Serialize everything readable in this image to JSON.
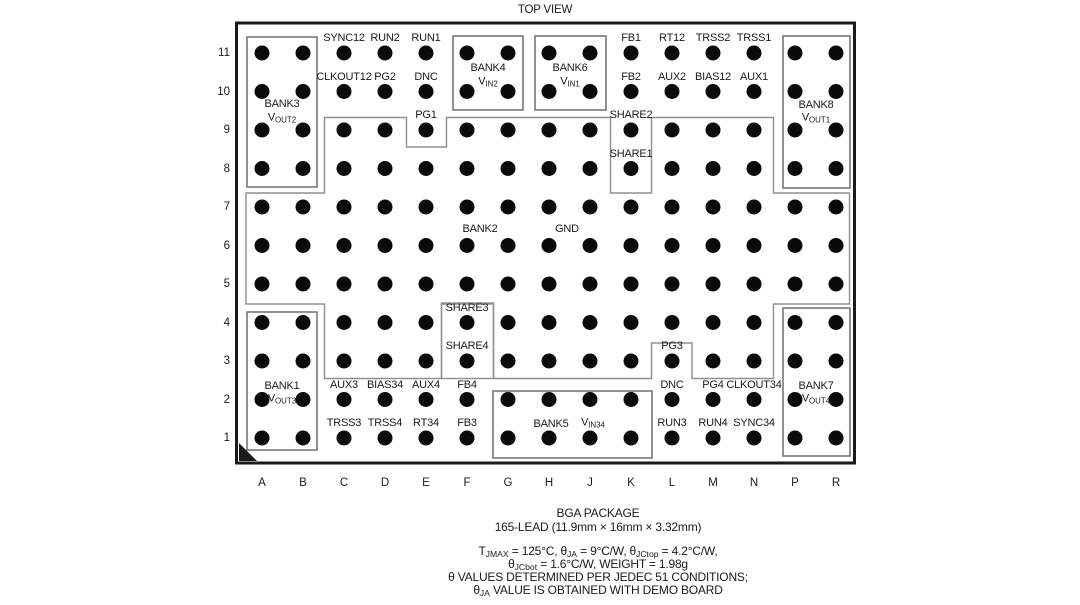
{
  "title": "TOP VIEW",
  "colors": {
    "ink": "#1a1a1a",
    "region_outline": "#8f8f8f",
    "box_outline": "#6e6e6e"
  },
  "grid": {
    "columns": [
      "A",
      "B",
      "C",
      "D",
      "E",
      "F",
      "G",
      "H",
      "J",
      "K",
      "L",
      "M",
      "N",
      "P",
      "R"
    ],
    "rows": [
      "11",
      "10",
      "9",
      "8",
      "7",
      "6",
      "5",
      "4",
      "3",
      "2",
      "1"
    ]
  },
  "pin_labels": [
    {
      "label": "SYNC12",
      "col": "C",
      "row": "11"
    },
    {
      "label": "RUN2",
      "col": "D",
      "row": "11"
    },
    {
      "label": "RUN1",
      "col": "E",
      "row": "11"
    },
    {
      "label": "FB1",
      "col": "K",
      "row": "11"
    },
    {
      "label": "RT12",
      "col": "L",
      "row": "11"
    },
    {
      "label": "TRSS2",
      "col": "M",
      "row": "11"
    },
    {
      "label": "TRSS1",
      "col": "N",
      "row": "11"
    },
    {
      "label": "CLKOUT12",
      "col": "C",
      "row": "10"
    },
    {
      "label": "PG2",
      "col": "D",
      "row": "10"
    },
    {
      "label": "DNC",
      "col": "E",
      "row": "10"
    },
    {
      "label": "FB2",
      "col": "K",
      "row": "10"
    },
    {
      "label": "AUX2",
      "col": "L",
      "row": "10"
    },
    {
      "label": "BIAS12",
      "col": "M",
      "row": "10"
    },
    {
      "label": "AUX1",
      "col": "N",
      "row": "10"
    },
    {
      "label": "PG1",
      "col": "E",
      "row": "9"
    },
    {
      "label": "SHARE2",
      "col": "K",
      "row": "9"
    },
    {
      "label": "SHARE1",
      "col": "K",
      "row": "8"
    },
    {
      "label": "SHARE3",
      "col": "F",
      "row": "4"
    },
    {
      "label": "SHARE4",
      "col": "F",
      "row": "3"
    },
    {
      "label": "PG3",
      "col": "L",
      "row": "3"
    },
    {
      "label": "AUX3",
      "col": "C",
      "row": "2"
    },
    {
      "label": "BIAS34",
      "col": "D",
      "row": "2"
    },
    {
      "label": "AUX4",
      "col": "E",
      "row": "2"
    },
    {
      "label": "FB4",
      "col": "F",
      "row": "2"
    },
    {
      "label": "DNC",
      "col": "L",
      "row": "2"
    },
    {
      "label": "PG4",
      "col": "M",
      "row": "2"
    },
    {
      "label": "CLKOUT34",
      "col": "N",
      "row": "2"
    },
    {
      "label": "TRSS3",
      "col": "C",
      "row": "1"
    },
    {
      "label": "TRSS4",
      "col": "D",
      "row": "1"
    },
    {
      "label": "RT34",
      "col": "E",
      "row": "1"
    },
    {
      "label": "FB3",
      "col": "F",
      "row": "1"
    },
    {
      "label": "RUN3",
      "col": "L",
      "row": "1"
    },
    {
      "label": "RUN4",
      "col": "M",
      "row": "1"
    },
    {
      "label": "SYNC34",
      "col": "N",
      "row": "1"
    }
  ],
  "region_labels": [
    {
      "label": "BANK2"
    },
    {
      "label": "GND"
    }
  ],
  "banks": [
    {
      "id": "bank3",
      "label": "BANK3",
      "rail": [
        [
          "t",
          "V"
        ],
        [
          "s",
          "OUT2"
        ]
      ]
    },
    {
      "id": "bank4",
      "label": "BANK4",
      "rail": [
        [
          "t",
          "V"
        ],
        [
          "s",
          "IN2"
        ]
      ]
    },
    {
      "id": "bank6",
      "label": "BANK6",
      "rail": [
        [
          "t",
          "V"
        ],
        [
          "s",
          "IN1"
        ]
      ]
    },
    {
      "id": "bank8",
      "label": "BANK8",
      "rail": [
        [
          "t",
          "V"
        ],
        [
          "s",
          "OUT1"
        ]
      ]
    },
    {
      "id": "bank1",
      "label": "BANK1",
      "rail": [
        [
          "t",
          "V"
        ],
        [
          "s",
          "OUT3"
        ]
      ]
    },
    {
      "id": "bank5",
      "label": "BANK5",
      "rail": [
        [
          "t",
          "V"
        ],
        [
          "s",
          "IN34"
        ]
      ]
    },
    {
      "id": "bank7",
      "label": "BANK7",
      "rail": [
        [
          "t",
          "V"
        ],
        [
          "s",
          "OUT4"
        ]
      ]
    }
  ],
  "caption": {
    "line1": "BGA PACKAGE",
    "line2": "165-LEAD (11.9mm × 16mm × 3.32mm)"
  },
  "notes": [
    [
      [
        "t",
        "T"
      ],
      [
        "s",
        "JMAX"
      ],
      [
        "t",
        " = 125°C, θ"
      ],
      [
        "s",
        "JA"
      ],
      [
        "t",
        " = 9°C/W, θ"
      ],
      [
        "s",
        "JCtop"
      ],
      [
        "t",
        " = 4.2°C/W,"
      ]
    ],
    [
      [
        "t",
        "θ"
      ],
      [
        "s",
        "JCbot"
      ],
      [
        "t",
        " = 1.6°C/W, WEIGHT = 1.98g"
      ]
    ],
    [
      [
        "t",
        "θ VALUES DETERMINED PER JEDEC 51 CONDITIONS;"
      ]
    ],
    [
      [
        "t",
        "θ"
      ],
      [
        "s",
        "JA"
      ],
      [
        "t",
        " VALUE IS OBTAINED WITH DEMO BOARD"
      ]
    ]
  ]
}
